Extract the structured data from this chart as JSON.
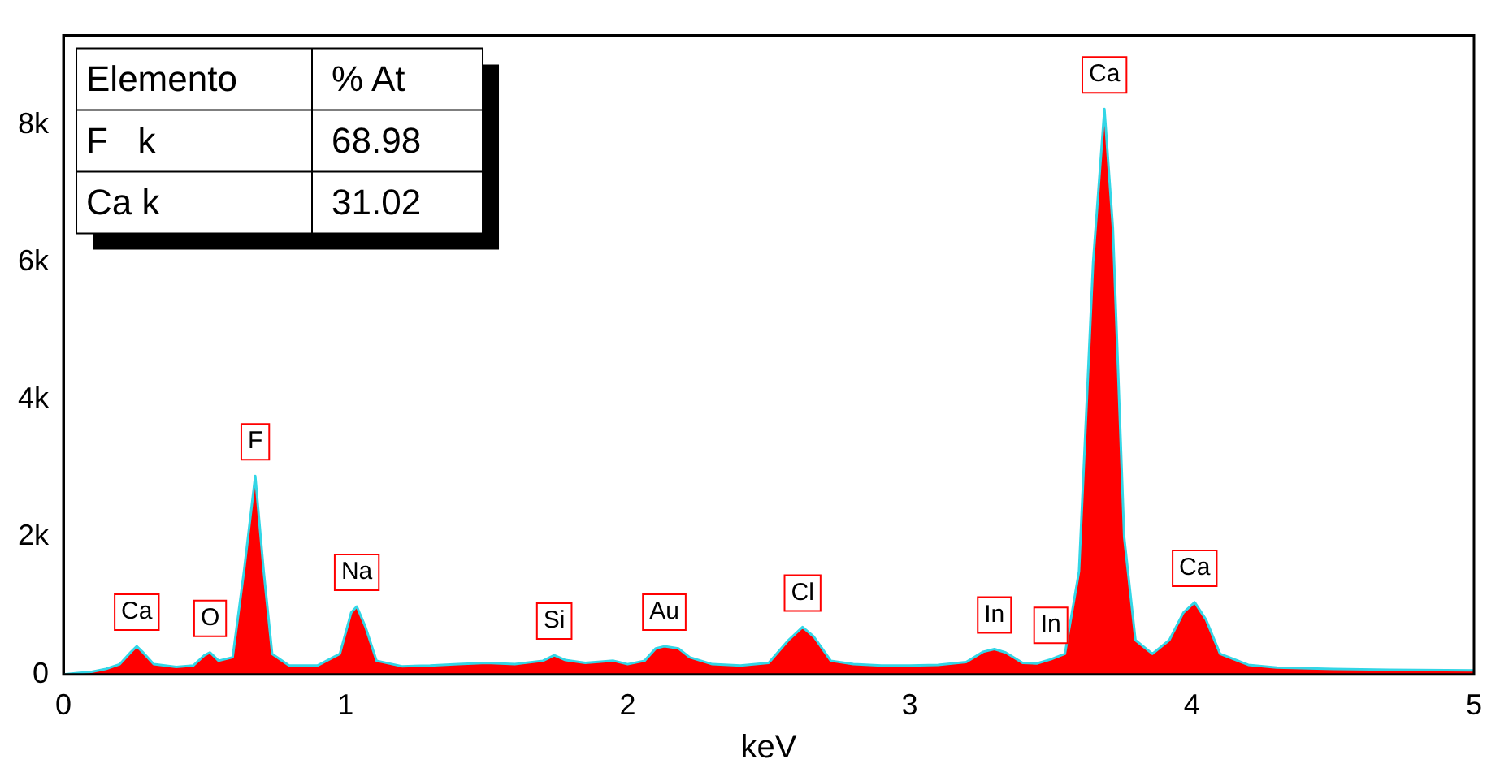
{
  "chart_data": {
    "type": "area",
    "xlabel": "keV",
    "xlim": [
      0,
      5
    ],
    "xticks": [
      0,
      1,
      2,
      3,
      4,
      5
    ],
    "ylim": [
      0,
      9300
    ],
    "yticks": [
      0,
      {
        "value": 2000,
        "label": "2k"
      },
      {
        "value": 4000,
        "label": "4k"
      },
      {
        "value": 6000,
        "label": "6k"
      },
      {
        "value": 8000,
        "label": "8k"
      }
    ],
    "grid": false,
    "legend": false,
    "series": [
      {
        "color": "#ff0000",
        "x": [
          0,
          0.05,
          0.1,
          0.15,
          0.2,
          0.24,
          0.26,
          0.28,
          0.32,
          0.4,
          0.46,
          0.5,
          0.52,
          0.55,
          0.6,
          0.64,
          0.68,
          0.71,
          0.74,
          0.8,
          0.9,
          0.98,
          1.02,
          1.04,
          1.07,
          1.11,
          1.2,
          1.3,
          1.4,
          1.5,
          1.6,
          1.7,
          1.74,
          1.78,
          1.85,
          1.95,
          2.0,
          2.06,
          2.1,
          2.13,
          2.18,
          2.22,
          2.3,
          2.4,
          2.5,
          2.57,
          2.62,
          2.66,
          2.72,
          2.8,
          2.9,
          3.0,
          3.1,
          3.2,
          3.26,
          3.3,
          3.34,
          3.4,
          3.45,
          3.5,
          3.55,
          3.6,
          3.65,
          3.69,
          3.72,
          3.76,
          3.8,
          3.86,
          3.92,
          3.97,
          4.01,
          4.05,
          4.1,
          4.2,
          4.3,
          4.5,
          4.7,
          5.0
        ],
        "values": [
          0,
          20,
          40,
          80,
          150,
          330,
          410,
          330,
          150,
          110,
          130,
          280,
          320,
          200,
          250,
          1500,
          2890,
          1500,
          300,
          130,
          130,
          300,
          900,
          990,
          700,
          200,
          120,
          130,
          150,
          170,
          150,
          200,
          280,
          210,
          170,
          200,
          150,
          200,
          380,
          410,
          380,
          250,
          150,
          130,
          170,
          500,
          690,
          550,
          200,
          150,
          130,
          130,
          140,
          180,
          330,
          370,
          320,
          170,
          160,
          220,
          300,
          1500,
          6000,
          8230,
          6500,
          2000,
          500,
          300,
          500,
          900,
          1050,
          800,
          300,
          140,
          100,
          80,
          70,
          60
        ]
      }
    ],
    "annotations": [
      "Elemento",
      "% At",
      "F   k",
      "68.98",
      "Ca k",
      "31.02",
      {
        "text": "Ca",
        "x": 0.26,
        "y": 410
      },
      {
        "text": "O",
        "x": 0.52,
        "y": 320
      },
      {
        "text": "F",
        "x": 0.68,
        "y": 2890
      },
      {
        "text": "Na",
        "x": 1.04,
        "y": 990
      },
      {
        "text": "Si",
        "x": 1.74,
        "y": 280
      },
      {
        "text": "Au",
        "x": 2.13,
        "y": 410
      },
      {
        "text": "Cl",
        "x": 2.62,
        "y": 690
      },
      {
        "text": "In",
        "x": 3.3,
        "y": 370
      },
      {
        "text": "In",
        "x": 3.5,
        "y": 220
      },
      {
        "text": "Ca",
        "x": 3.69,
        "y": 8230
      },
      {
        "text": "Ca",
        "x": 4.01,
        "y": 1050
      }
    ]
  }
}
